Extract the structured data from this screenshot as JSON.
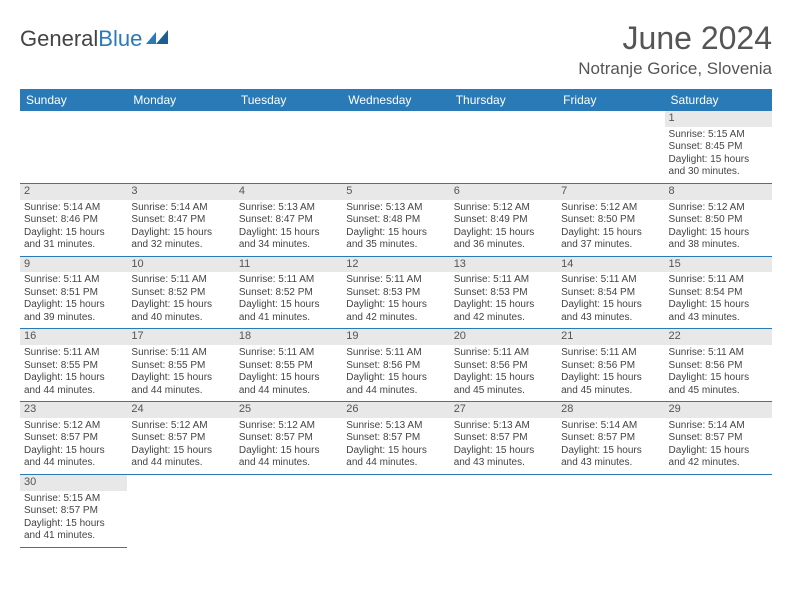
{
  "brand": {
    "part1": "General",
    "part2": "Blue"
  },
  "title": "June 2024",
  "location": "Notranje Gorice, Slovenia",
  "colors": {
    "header_bg": "#2a7ab8",
    "header_text": "#ffffff",
    "rule": "#2a7ab8",
    "daynum_bg": "#e8e8e8",
    "text": "#444444"
  },
  "weekdays": [
    "Sunday",
    "Monday",
    "Tuesday",
    "Wednesday",
    "Thursday",
    "Friday",
    "Saturday"
  ],
  "weeks": [
    [
      null,
      null,
      null,
      null,
      null,
      null,
      {
        "n": "1",
        "sr": "Sunrise: 5:15 AM",
        "ss": "Sunset: 8:45 PM",
        "d1": "Daylight: 15 hours",
        "d2": "and 30 minutes."
      }
    ],
    [
      {
        "n": "2",
        "sr": "Sunrise: 5:14 AM",
        "ss": "Sunset: 8:46 PM",
        "d1": "Daylight: 15 hours",
        "d2": "and 31 minutes."
      },
      {
        "n": "3",
        "sr": "Sunrise: 5:14 AM",
        "ss": "Sunset: 8:47 PM",
        "d1": "Daylight: 15 hours",
        "d2": "and 32 minutes."
      },
      {
        "n": "4",
        "sr": "Sunrise: 5:13 AM",
        "ss": "Sunset: 8:47 PM",
        "d1": "Daylight: 15 hours",
        "d2": "and 34 minutes."
      },
      {
        "n": "5",
        "sr": "Sunrise: 5:13 AM",
        "ss": "Sunset: 8:48 PM",
        "d1": "Daylight: 15 hours",
        "d2": "and 35 minutes."
      },
      {
        "n": "6",
        "sr": "Sunrise: 5:12 AM",
        "ss": "Sunset: 8:49 PM",
        "d1": "Daylight: 15 hours",
        "d2": "and 36 minutes."
      },
      {
        "n": "7",
        "sr": "Sunrise: 5:12 AM",
        "ss": "Sunset: 8:50 PM",
        "d1": "Daylight: 15 hours",
        "d2": "and 37 minutes."
      },
      {
        "n": "8",
        "sr": "Sunrise: 5:12 AM",
        "ss": "Sunset: 8:50 PM",
        "d1": "Daylight: 15 hours",
        "d2": "and 38 minutes."
      }
    ],
    [
      {
        "n": "9",
        "sr": "Sunrise: 5:11 AM",
        "ss": "Sunset: 8:51 PM",
        "d1": "Daylight: 15 hours",
        "d2": "and 39 minutes."
      },
      {
        "n": "10",
        "sr": "Sunrise: 5:11 AM",
        "ss": "Sunset: 8:52 PM",
        "d1": "Daylight: 15 hours",
        "d2": "and 40 minutes."
      },
      {
        "n": "11",
        "sr": "Sunrise: 5:11 AM",
        "ss": "Sunset: 8:52 PM",
        "d1": "Daylight: 15 hours",
        "d2": "and 41 minutes."
      },
      {
        "n": "12",
        "sr": "Sunrise: 5:11 AM",
        "ss": "Sunset: 8:53 PM",
        "d1": "Daylight: 15 hours",
        "d2": "and 42 minutes."
      },
      {
        "n": "13",
        "sr": "Sunrise: 5:11 AM",
        "ss": "Sunset: 8:53 PM",
        "d1": "Daylight: 15 hours",
        "d2": "and 42 minutes."
      },
      {
        "n": "14",
        "sr": "Sunrise: 5:11 AM",
        "ss": "Sunset: 8:54 PM",
        "d1": "Daylight: 15 hours",
        "d2": "and 43 minutes."
      },
      {
        "n": "15",
        "sr": "Sunrise: 5:11 AM",
        "ss": "Sunset: 8:54 PM",
        "d1": "Daylight: 15 hours",
        "d2": "and 43 minutes."
      }
    ],
    [
      {
        "n": "16",
        "sr": "Sunrise: 5:11 AM",
        "ss": "Sunset: 8:55 PM",
        "d1": "Daylight: 15 hours",
        "d2": "and 44 minutes."
      },
      {
        "n": "17",
        "sr": "Sunrise: 5:11 AM",
        "ss": "Sunset: 8:55 PM",
        "d1": "Daylight: 15 hours",
        "d2": "and 44 minutes."
      },
      {
        "n": "18",
        "sr": "Sunrise: 5:11 AM",
        "ss": "Sunset: 8:55 PM",
        "d1": "Daylight: 15 hours",
        "d2": "and 44 minutes."
      },
      {
        "n": "19",
        "sr": "Sunrise: 5:11 AM",
        "ss": "Sunset: 8:56 PM",
        "d1": "Daylight: 15 hours",
        "d2": "and 44 minutes."
      },
      {
        "n": "20",
        "sr": "Sunrise: 5:11 AM",
        "ss": "Sunset: 8:56 PM",
        "d1": "Daylight: 15 hours",
        "d2": "and 45 minutes."
      },
      {
        "n": "21",
        "sr": "Sunrise: 5:11 AM",
        "ss": "Sunset: 8:56 PM",
        "d1": "Daylight: 15 hours",
        "d2": "and 45 minutes."
      },
      {
        "n": "22",
        "sr": "Sunrise: 5:11 AM",
        "ss": "Sunset: 8:56 PM",
        "d1": "Daylight: 15 hours",
        "d2": "and 45 minutes."
      }
    ],
    [
      {
        "n": "23",
        "sr": "Sunrise: 5:12 AM",
        "ss": "Sunset: 8:57 PM",
        "d1": "Daylight: 15 hours",
        "d2": "and 44 minutes."
      },
      {
        "n": "24",
        "sr": "Sunrise: 5:12 AM",
        "ss": "Sunset: 8:57 PM",
        "d1": "Daylight: 15 hours",
        "d2": "and 44 minutes."
      },
      {
        "n": "25",
        "sr": "Sunrise: 5:12 AM",
        "ss": "Sunset: 8:57 PM",
        "d1": "Daylight: 15 hours",
        "d2": "and 44 minutes."
      },
      {
        "n": "26",
        "sr": "Sunrise: 5:13 AM",
        "ss": "Sunset: 8:57 PM",
        "d1": "Daylight: 15 hours",
        "d2": "and 44 minutes."
      },
      {
        "n": "27",
        "sr": "Sunrise: 5:13 AM",
        "ss": "Sunset: 8:57 PM",
        "d1": "Daylight: 15 hours",
        "d2": "and 43 minutes."
      },
      {
        "n": "28",
        "sr": "Sunrise: 5:14 AM",
        "ss": "Sunset: 8:57 PM",
        "d1": "Daylight: 15 hours",
        "d2": "and 43 minutes."
      },
      {
        "n": "29",
        "sr": "Sunrise: 5:14 AM",
        "ss": "Sunset: 8:57 PM",
        "d1": "Daylight: 15 hours",
        "d2": "and 42 minutes."
      }
    ],
    [
      {
        "n": "30",
        "sr": "Sunrise: 5:15 AM",
        "ss": "Sunset: 8:57 PM",
        "d1": "Daylight: 15 hours",
        "d2": "and 41 minutes."
      },
      null,
      null,
      null,
      null,
      null,
      null
    ]
  ]
}
